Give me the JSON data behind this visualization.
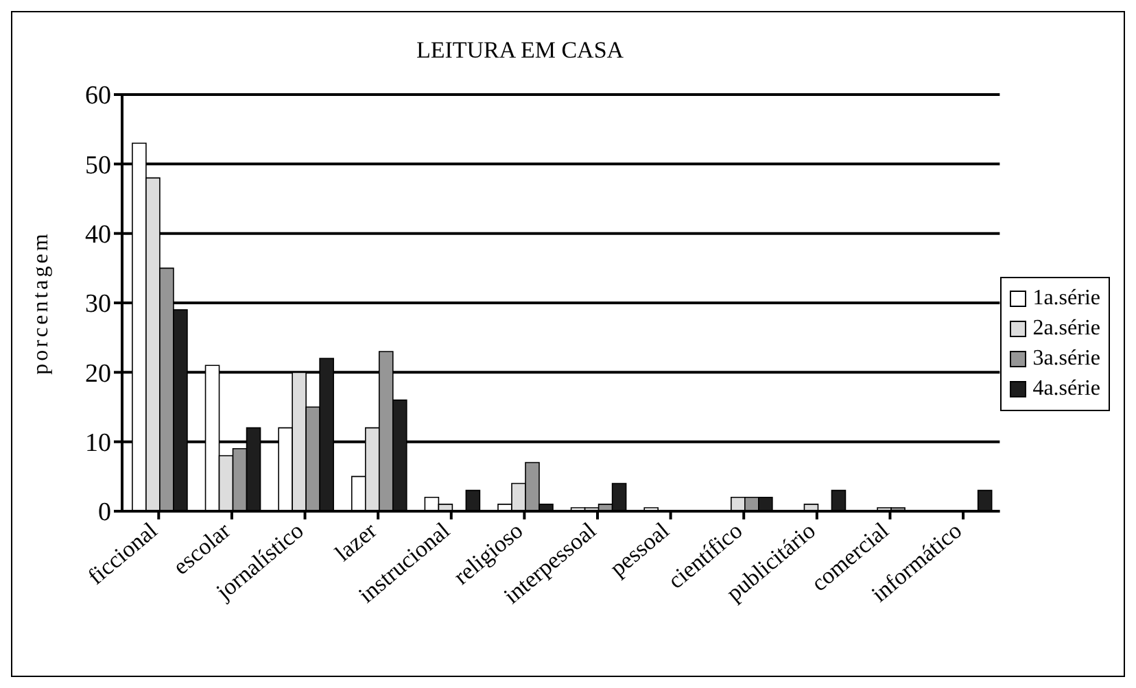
{
  "chart_data": {
    "type": "bar",
    "title": "LEITURA EM CASA",
    "ylabel": "porcentagem",
    "categories": [
      "ficcional",
      "escolar",
      "jornalístico",
      "lazer",
      "instrucional",
      "religioso",
      "interpessoal",
      "pessoal",
      "científico",
      "publicitário",
      "comercial",
      "informático"
    ],
    "series": [
      {
        "name": "1a.série",
        "color": "#ffffff",
        "values": [
          53,
          21,
          12,
          5,
          2,
          1,
          0.5,
          0.5,
          0,
          0,
          0,
          0
        ]
      },
      {
        "name": "2a.série",
        "color": "#dddddd",
        "values": [
          48,
          8,
          20,
          12,
          1,
          4,
          0.5,
          0,
          2,
          1,
          0.5,
          0
        ]
      },
      {
        "name": "3a.série",
        "color": "#969696",
        "values": [
          35,
          9,
          15,
          23,
          0,
          7,
          1,
          0,
          2,
          0,
          0.5,
          0
        ]
      },
      {
        "name": "4a.série",
        "color": "#1e1e1e",
        "values": [
          29,
          12,
          22,
          16,
          3,
          1,
          4,
          0,
          2,
          3,
          0,
          3
        ]
      }
    ],
    "ylim": [
      0,
      60
    ],
    "yticks": [
      0,
      10,
      20,
      30,
      40,
      50,
      60
    ],
    "grid": "y",
    "legend": "right"
  }
}
